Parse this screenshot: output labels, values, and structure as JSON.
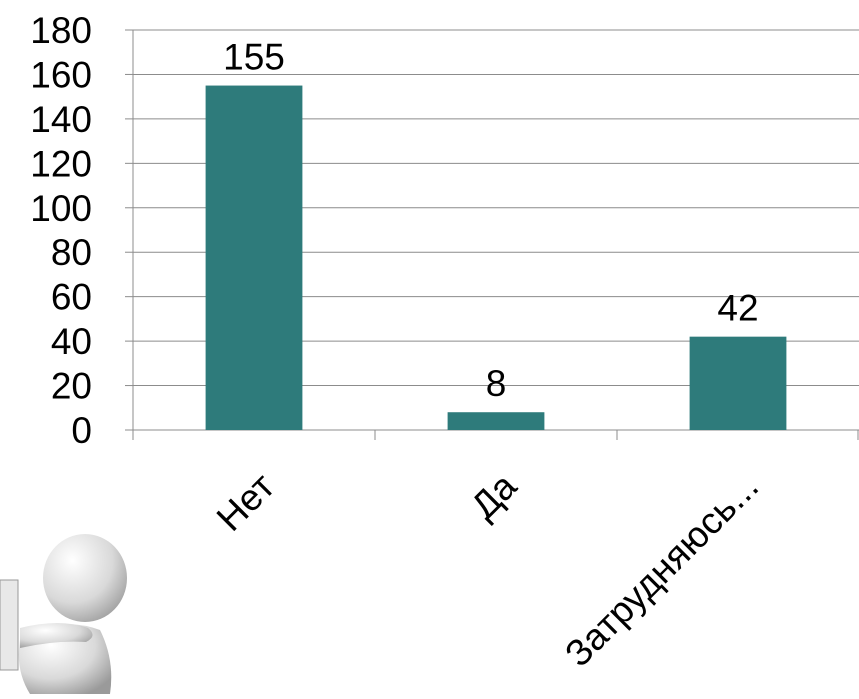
{
  "chart_data": {
    "type": "bar",
    "categories": [
      "Нет",
      "Да",
      "Затрудняюсь..."
    ],
    "values": [
      155,
      8,
      42
    ],
    "color": "#2e7b7b",
    "ylim": [
      0,
      180
    ],
    "yticks": [
      0,
      20,
      40,
      60,
      80,
      100,
      120,
      140,
      160,
      180
    ],
    "grid": true,
    "data_labels": true
  }
}
